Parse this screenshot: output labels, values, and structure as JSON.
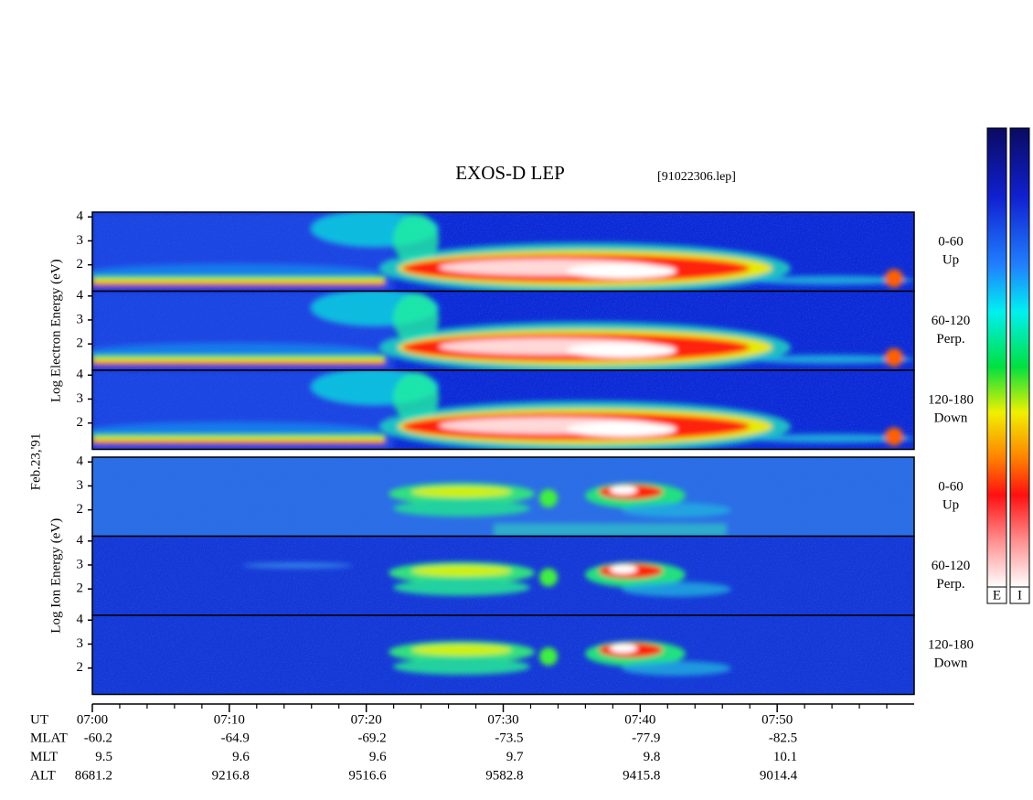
{
  "chart_data": {
    "type": "spectrogram",
    "title": "EXOS-D LEP",
    "file_label": "[91022306.lep]",
    "date_label": "Feb.23,'91",
    "xlim": [
      0,
      60
    ],
    "xticks": [
      {
        "value": 0,
        "label": "07:00"
      },
      {
        "value": 10,
        "label": "07:10"
      },
      {
        "value": 20,
        "label": "07:20"
      },
      {
        "value": 30,
        "label": "07:30"
      },
      {
        "value": 40,
        "label": "07:40"
      },
      {
        "value": 50,
        "label": "07:50"
      }
    ],
    "x_minor_ticks": [
      2,
      4,
      6,
      8,
      12,
      14,
      16,
      18,
      22,
      24,
      26,
      28,
      32,
      34,
      36,
      38,
      42,
      44,
      46,
      48,
      52,
      54,
      56,
      58
    ],
    "x_label": "UT",
    "groups": [
      {
        "species": "electron",
        "ylabel": "Log Electron Energy (eV)",
        "panels": [
          {
            "label": [
              "0-60",
              "Up"
            ],
            "ylim": [
              0.9,
              4.2
            ],
            "yticks": [
              2,
              3,
              4
            ]
          },
          {
            "label": [
              "60-120",
              "Perp."
            ],
            "ylim": [
              0.9,
              4.2
            ],
            "yticks": [
              2,
              3,
              4
            ]
          },
          {
            "label": [
              "120-180",
              "Down"
            ],
            "ylim": [
              0.9,
              4.2
            ],
            "yticks": [
              2,
              3,
              4
            ]
          }
        ]
      },
      {
        "species": "ion",
        "ylabel": "Log Ion Energy (eV)",
        "panels": [
          {
            "label": [
              "0-60",
              "Up"
            ],
            "ylim": [
              0.9,
              4.2
            ],
            "yticks": [
              2,
              3,
              4
            ]
          },
          {
            "label": [
              "60-120",
              "Perp."
            ],
            "ylim": [
              0.9,
              4.2
            ],
            "yticks": [
              2,
              3,
              4
            ]
          },
          {
            "label": [
              "120-180",
              "Down"
            ],
            "ylim": [
              0.9,
              4.2
            ],
            "yticks": [
              2,
              3,
              4
            ]
          }
        ]
      }
    ],
    "ephemeris": [
      {
        "name": "MLAT",
        "values": [
          -60.2,
          -64.9,
          -69.2,
          -73.5,
          -77.9,
          -82.5
        ]
      },
      {
        "name": "MLT",
        "values": [
          9.5,
          9.6,
          9.6,
          9.7,
          9.8,
          10.1
        ]
      },
      {
        "name": "ALT",
        "values": [
          8681.2,
          9216.8,
          9516.6,
          9582.8,
          9415.8,
          9014.4
        ]
      }
    ],
    "colorbars": [
      "E",
      "I"
    ]
  }
}
